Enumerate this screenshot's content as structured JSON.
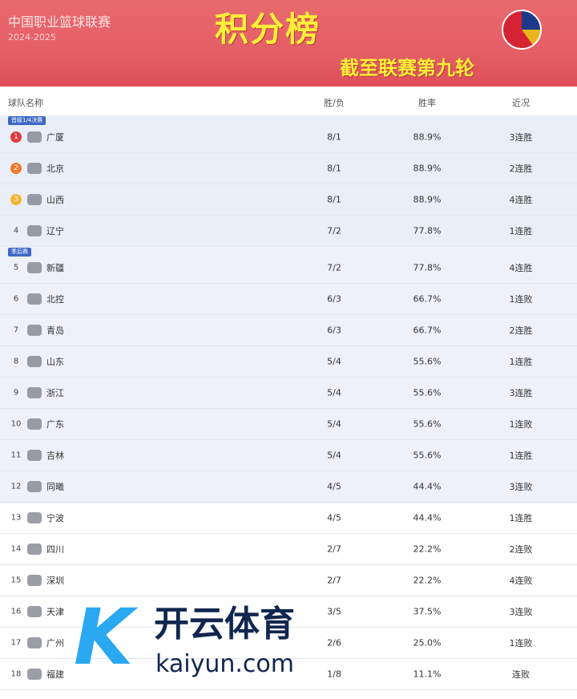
{
  "header": {
    "league": "中国职业篮球联赛",
    "season": "2024-2025",
    "title": "积分榜",
    "subtitle": "截至联赛第九轮"
  },
  "columns": {
    "team": "球队名称",
    "wl": "胜/负",
    "pct": "胜率",
    "streak": "近况"
  },
  "tags": {
    "quarterfinal": "晋级1/4决赛",
    "playoffs": "季后赛"
  },
  "colors": {
    "banner": "#e45f66",
    "title": "#ffef3a",
    "zone_top4": "#e9eef9",
    "zone_playoff": "#eef1fa",
    "medal_1": "#e23b3b",
    "medal_2": "#ee7a2a",
    "medal_3": "#f2b632"
  },
  "teams": [
    {
      "rank": "1",
      "name": "广厦",
      "wl": "8/1",
      "pct": "88.9%",
      "streak": "3连胜"
    },
    {
      "rank": "2",
      "name": "北京",
      "wl": "8/1",
      "pct": "88.9%",
      "streak": "2连胜"
    },
    {
      "rank": "3",
      "name": "山西",
      "wl": "8/1",
      "pct": "88.9%",
      "streak": "4连胜"
    },
    {
      "rank": "4",
      "name": "辽宁",
      "wl": "7/2",
      "pct": "77.8%",
      "streak": "1连胜"
    },
    {
      "rank": "5",
      "name": "新疆",
      "wl": "7/2",
      "pct": "77.8%",
      "streak": "4连胜"
    },
    {
      "rank": "6",
      "name": "北控",
      "wl": "6/3",
      "pct": "66.7%",
      "streak": "1连败"
    },
    {
      "rank": "7",
      "name": "青岛",
      "wl": "6/3",
      "pct": "66.7%",
      "streak": "2连胜"
    },
    {
      "rank": "8",
      "name": "山东",
      "wl": "5/4",
      "pct": "55.6%",
      "streak": "1连胜"
    },
    {
      "rank": "9",
      "name": "浙江",
      "wl": "5/4",
      "pct": "55.6%",
      "streak": "3连胜"
    },
    {
      "rank": "10",
      "name": "广东",
      "wl": "5/4",
      "pct": "55.6%",
      "streak": "1连败"
    },
    {
      "rank": "11",
      "name": "吉林",
      "wl": "5/4",
      "pct": "55.6%",
      "streak": "1连胜"
    },
    {
      "rank": "12",
      "name": "同曦",
      "wl": "4/5",
      "pct": "44.4%",
      "streak": "3连败"
    },
    {
      "rank": "13",
      "name": "宁波",
      "wl": "4/5",
      "pct": "44.4%",
      "streak": "1连胜"
    },
    {
      "rank": "14",
      "name": "四川",
      "wl": "2/7",
      "pct": "22.2%",
      "streak": "2连败"
    },
    {
      "rank": "15",
      "name": "深圳",
      "wl": "2/7",
      "pct": "22.2%",
      "streak": "4连败"
    },
    {
      "rank": "16",
      "name": "天津",
      "wl": "3/5",
      "pct": "37.5%",
      "streak": "3连败"
    },
    {
      "rank": "17",
      "name": "广州",
      "wl": "2/6",
      "pct": "25.0%",
      "streak": "1连败"
    },
    {
      "rank": "18",
      "name": "福建",
      "wl": "1/8",
      "pct": "11.1%",
      "streak": "连败"
    }
  ],
  "watermark": {
    "cn": "开云体育",
    "en": "kaiyun.com",
    "mark": "K"
  }
}
